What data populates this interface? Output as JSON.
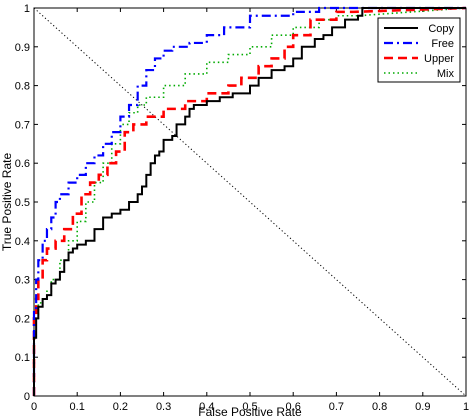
{
  "chart_data": {
    "type": "line",
    "xlabel": "False Positive Rate",
    "ylabel": "True Positive Rate",
    "xlim": [
      0,
      1
    ],
    "ylim": [
      0,
      1
    ],
    "x_ticks": [
      "0",
      "0.1",
      "0.2",
      "0.3",
      "0.4",
      "0.5",
      "0.6",
      "0.7",
      "0.8",
      "0.9",
      "1"
    ],
    "y_ticks": [
      "0",
      "0.1",
      "0.2",
      "0.3",
      "0.4",
      "0.5",
      "0.6",
      "0.7",
      "0.8",
      "0.9",
      "1"
    ],
    "grid": false,
    "legend": "top-right",
    "reference_line": {
      "x": [
        0,
        1
      ],
      "y": [
        1,
        0
      ],
      "color": "#000000",
      "style": "dotted"
    },
    "series": [
      {
        "name": "Copy",
        "color": "#000000",
        "style": "solid",
        "x": [
          0,
          0,
          0.005,
          0.005,
          0.01,
          0.01,
          0.02,
          0.02,
          0.03,
          0.03,
          0.04,
          0.04,
          0.05,
          0.05,
          0.06,
          0.06,
          0.07,
          0.07,
          0.08,
          0.08,
          0.09,
          0.09,
          0.1,
          0.1,
          0.12,
          0.12,
          0.14,
          0.14,
          0.16,
          0.16,
          0.18,
          0.18,
          0.2,
          0.2,
          0.22,
          0.22,
          0.24,
          0.24,
          0.25,
          0.25,
          0.26,
          0.26,
          0.27,
          0.27,
          0.28,
          0.28,
          0.29,
          0.29,
          0.3,
          0.3,
          0.32,
          0.32,
          0.33,
          0.33,
          0.35,
          0.35,
          0.36,
          0.36,
          0.37,
          0.37,
          0.4,
          0.4,
          0.43,
          0.43,
          0.46,
          0.46,
          0.5,
          0.5,
          0.52,
          0.52,
          0.55,
          0.55,
          0.58,
          0.58,
          0.6,
          0.6,
          0.62,
          0.62,
          0.65,
          0.65,
          0.67,
          0.67,
          0.69,
          0.69,
          0.72,
          0.72,
          0.75,
          0.75,
          0.76,
          0.76,
          0.78,
          1
        ],
        "y": [
          0,
          0.15,
          0.15,
          0.2,
          0.2,
          0.23,
          0.23,
          0.25,
          0.25,
          0.26,
          0.26,
          0.29,
          0.29,
          0.3,
          0.3,
          0.32,
          0.32,
          0.35,
          0.35,
          0.37,
          0.37,
          0.38,
          0.38,
          0.39,
          0.39,
          0.4,
          0.4,
          0.43,
          0.43,
          0.46,
          0.46,
          0.47,
          0.47,
          0.48,
          0.48,
          0.5,
          0.5,
          0.52,
          0.52,
          0.54,
          0.54,
          0.57,
          0.57,
          0.6,
          0.6,
          0.62,
          0.62,
          0.63,
          0.63,
          0.66,
          0.66,
          0.67,
          0.67,
          0.7,
          0.7,
          0.72,
          0.72,
          0.74,
          0.74,
          0.75,
          0.75,
          0.76,
          0.76,
          0.77,
          0.77,
          0.78,
          0.78,
          0.8,
          0.8,
          0.82,
          0.82,
          0.84,
          0.84,
          0.85,
          0.85,
          0.87,
          0.87,
          0.9,
          0.9,
          0.92,
          0.92,
          0.93,
          0.93,
          0.95,
          0.95,
          0.97,
          0.97,
          0.98,
          0.98,
          1.0,
          1.0,
          1.0
        ]
      },
      {
        "name": "Free",
        "color": "#0000ff",
        "style": "dash-dot",
        "x": [
          0,
          0,
          0.005,
          0.005,
          0.01,
          0.01,
          0.02,
          0.02,
          0.03,
          0.03,
          0.04,
          0.04,
          0.05,
          0.05,
          0.06,
          0.06,
          0.08,
          0.08,
          0.1,
          0.1,
          0.12,
          0.12,
          0.14,
          0.14,
          0.16,
          0.16,
          0.18,
          0.18,
          0.2,
          0.2,
          0.22,
          0.22,
          0.24,
          0.24,
          0.26,
          0.26,
          0.28,
          0.28,
          0.3,
          0.3,
          0.32,
          0.32,
          0.36,
          0.36,
          0.4,
          0.4,
          0.44,
          0.44,
          0.5,
          0.5,
          0.6,
          0.6,
          0.66,
          0.66,
          0.7,
          1
        ],
        "y": [
          0,
          0.22,
          0.22,
          0.3,
          0.3,
          0.35,
          0.35,
          0.4,
          0.4,
          0.43,
          0.43,
          0.46,
          0.46,
          0.5,
          0.5,
          0.52,
          0.52,
          0.55,
          0.55,
          0.57,
          0.57,
          0.6,
          0.6,
          0.62,
          0.62,
          0.65,
          0.65,
          0.68,
          0.68,
          0.72,
          0.72,
          0.75,
          0.75,
          0.8,
          0.8,
          0.84,
          0.84,
          0.87,
          0.87,
          0.89,
          0.89,
          0.9,
          0.9,
          0.91,
          0.91,
          0.93,
          0.93,
          0.95,
          0.95,
          0.98,
          0.98,
          0.99,
          0.99,
          1.0,
          1.0,
          1.0
        ]
      },
      {
        "name": "Upper",
        "color": "#ff0000",
        "style": "dashed",
        "x": [
          0,
          0,
          0.005,
          0.005,
          0.01,
          0.01,
          0.02,
          0.02,
          0.03,
          0.03,
          0.05,
          0.05,
          0.07,
          0.07,
          0.09,
          0.09,
          0.11,
          0.11,
          0.13,
          0.13,
          0.15,
          0.15,
          0.17,
          0.17,
          0.19,
          0.19,
          0.21,
          0.21,
          0.23,
          0.23,
          0.26,
          0.26,
          0.3,
          0.3,
          0.35,
          0.35,
          0.4,
          0.4,
          0.45,
          0.45,
          0.48,
          0.48,
          0.52,
          0.52,
          0.55,
          0.55,
          0.58,
          0.58,
          0.6,
          0.6,
          0.64,
          0.64,
          0.7,
          0.7,
          0.74,
          1
        ],
        "y": [
          0,
          0.2,
          0.2,
          0.25,
          0.25,
          0.3,
          0.3,
          0.35,
          0.35,
          0.38,
          0.38,
          0.4,
          0.4,
          0.43,
          0.43,
          0.47,
          0.47,
          0.52,
          0.52,
          0.55,
          0.55,
          0.57,
          0.57,
          0.6,
          0.6,
          0.63,
          0.63,
          0.68,
          0.68,
          0.7,
          0.7,
          0.72,
          0.72,
          0.74,
          0.74,
          0.76,
          0.76,
          0.78,
          0.78,
          0.8,
          0.8,
          0.82,
          0.82,
          0.85,
          0.85,
          0.87,
          0.87,
          0.9,
          0.9,
          0.93,
          0.93,
          0.97,
          0.97,
          0.99,
          0.99,
          1.0
        ]
      },
      {
        "name": "Mix",
        "color": "#00aa00",
        "style": "dotted",
        "x": [
          0,
          0,
          0.005,
          0.005,
          0.01,
          0.01,
          0.02,
          0.02,
          0.03,
          0.03,
          0.04,
          0.04,
          0.06,
          0.06,
          0.08,
          0.08,
          0.1,
          0.1,
          0.12,
          0.12,
          0.14,
          0.14,
          0.16,
          0.16,
          0.18,
          0.18,
          0.2,
          0.2,
          0.22,
          0.22,
          0.24,
          0.24,
          0.26,
          0.26,
          0.3,
          0.3,
          0.35,
          0.35,
          0.4,
          0.4,
          0.45,
          0.45,
          0.5,
          0.5,
          0.55,
          0.55,
          0.6,
          0.6,
          0.66,
          0.66,
          0.7,
          0.7,
          0.75,
          1
        ],
        "y": [
          0,
          0.15,
          0.15,
          0.2,
          0.2,
          0.24,
          0.24,
          0.25,
          0.25,
          0.27,
          0.27,
          0.3,
          0.3,
          0.35,
          0.35,
          0.4,
          0.4,
          0.45,
          0.45,
          0.5,
          0.5,
          0.55,
          0.55,
          0.6,
          0.6,
          0.65,
          0.65,
          0.7,
          0.7,
          0.73,
          0.73,
          0.75,
          0.75,
          0.77,
          0.77,
          0.8,
          0.8,
          0.83,
          0.83,
          0.86,
          0.86,
          0.88,
          0.88,
          0.9,
          0.9,
          0.93,
          0.93,
          0.95,
          0.95,
          0.97,
          0.97,
          0.98,
          0.98,
          1.0
        ]
      }
    ]
  }
}
